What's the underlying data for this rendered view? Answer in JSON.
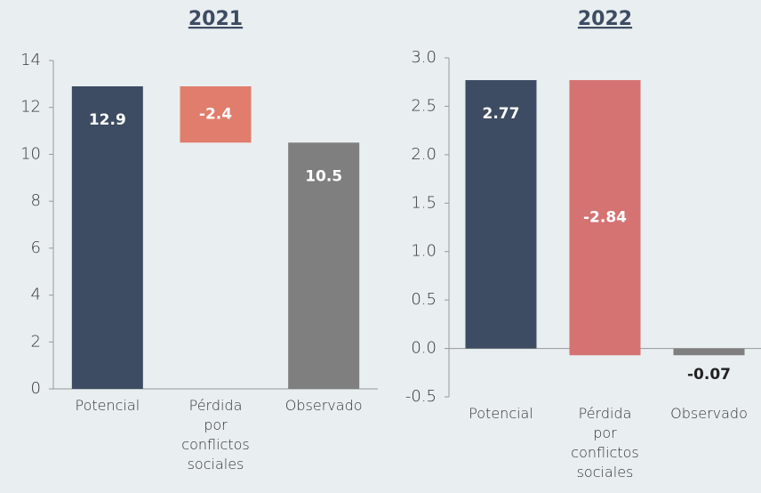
{
  "chart_data": [
    {
      "type": "waterfall",
      "title": "2021",
      "categories": [
        "Potencial",
        "Pérdida por conflictos sociales",
        "Observado"
      ],
      "values": [
        12.9,
        -2.4,
        10.5
      ],
      "measure": [
        "absolute",
        "relative",
        "total"
      ],
      "colors": [
        "#3d4c62",
        "#e07d6c",
        "#7f7f7f"
      ],
      "label_colors": [
        "#ffffff",
        "#ffffff",
        "#ffffff"
      ],
      "ylim": [
        0,
        14
      ],
      "yticks": [
        0,
        2,
        4,
        6,
        8,
        10,
        12,
        14
      ]
    },
    {
      "type": "waterfall",
      "title": "2022",
      "categories": [
        "Potencial",
        "Pérdida por conflictos sociales",
        "Observado"
      ],
      "values": [
        2.77,
        -2.84,
        -0.07
      ],
      "measure": [
        "absolute",
        "relative",
        "total"
      ],
      "colors": [
        "#3d4c62",
        "#d47372",
        "#7f7f7f"
      ],
      "label_colors": [
        "#ffffff",
        "#ffffff",
        "#222222"
      ],
      "ylim": [
        -0.5,
        3.0
      ],
      "yticks": [
        -0.5,
        {
          "value": 0,
          "label": "0.0"
        },
        0.5,
        {
          "value": 1,
          "label": "1.0"
        },
        1.5,
        {
          "value": 2,
          "label": "2.0"
        },
        2.5,
        {
          "value": 3,
          "label": "3.0"
        }
      ]
    }
  ]
}
